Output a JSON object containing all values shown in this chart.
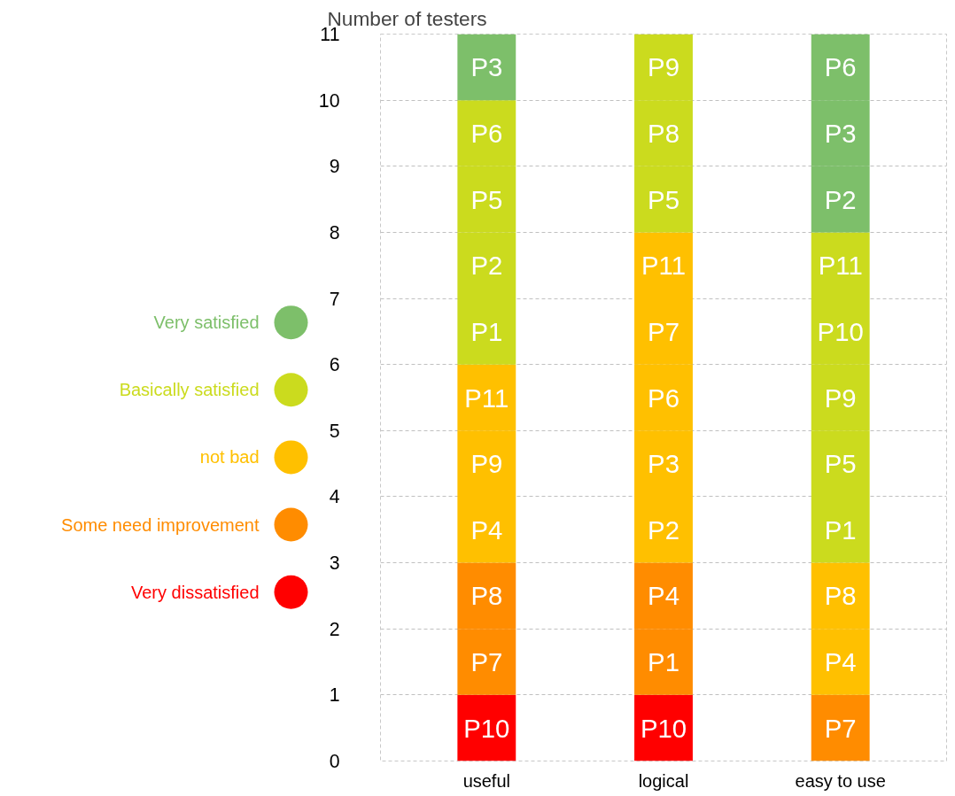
{
  "chart_data": {
    "type": "bar",
    "stacked": true,
    "ylabel": "Number of testers",
    "categories": [
      "useful",
      "logical",
      "easy to use"
    ],
    "series": [
      {
        "name": "Very dissatisfied",
        "color": "#ff0000",
        "values": [
          1,
          1,
          0
        ],
        "value_labels": [
          "P10",
          "P10",
          null
        ]
      },
      {
        "name": "Some need improvement",
        "color": "#ff8c00",
        "values": [
          1,
          1,
          1
        ],
        "value_labels": [
          "P7",
          "P1",
          "P7"
        ]
      },
      {
        "color": "#ff8c00",
        "values": [
          1,
          1,
          0
        ],
        "value_labels": [
          "P8",
          "P4",
          null
        ]
      },
      {
        "name": "not bad",
        "color": "#ffc000",
        "values": [
          1,
          1,
          1
        ],
        "value_labels": [
          "P4",
          "P2",
          "P4"
        ]
      },
      {
        "color": "#ffc000",
        "values": [
          1,
          1,
          1
        ],
        "value_labels": [
          "P9",
          "P3",
          "P8"
        ]
      },
      {
        "color": "#ffc000",
        "values": [
          1,
          1,
          0
        ],
        "value_labels": [
          "P11",
          "P6",
          null
        ]
      },
      {
        "color": "#ffc000",
        "values": [
          0,
          1,
          0
        ],
        "value_labels": [
          null,
          "P7",
          null
        ]
      },
      {
        "color": "#ffc000",
        "values": [
          0,
          1,
          0
        ],
        "value_labels": [
          null,
          "P11",
          null
        ]
      },
      {
        "name": "Basically satisfied",
        "color": "#cbdb1e",
        "values": [
          1,
          1,
          1
        ],
        "value_labels": [
          "P1",
          "P5",
          "P1"
        ]
      },
      {
        "color": "#cbdb1e",
        "values": [
          1,
          1,
          1
        ],
        "value_labels": [
          "P2",
          "P8",
          "P5"
        ]
      },
      {
        "color": "#cbdb1e",
        "values": [
          1,
          1,
          1
        ],
        "value_labels": [
          "P5",
          "P9",
          "P9"
        ]
      },
      {
        "color": "#cbdb1e",
        "values": [
          1,
          0,
          1
        ],
        "value_labels": [
          "P6",
          null,
          "P10"
        ]
      },
      {
        "color": "#cbdb1e",
        "values": [
          0,
          0,
          1
        ],
        "value_labels": [
          null,
          null,
          "P11"
        ]
      },
      {
        "name": "Very satisfied",
        "color": "#7dbf6a",
        "values": [
          1,
          0,
          1
        ],
        "value_labels": [
          "P3",
          null,
          "P2"
        ]
      },
      {
        "color": "#7dbf6a",
        "values": [
          0,
          0,
          1
        ],
        "value_labels": [
          null,
          null,
          "P3"
        ]
      },
      {
        "color": "#7dbf6a",
        "values": [
          0,
          0,
          1
        ],
        "value_labels": [
          null,
          null,
          "P6"
        ]
      }
    ],
    "ylim": [
      0,
      11
    ],
    "yticks": [
      0,
      1,
      2,
      3,
      4,
      5,
      6,
      7,
      8,
      9,
      10,
      11
    ],
    "grid": "y",
    "legend": "left"
  }
}
